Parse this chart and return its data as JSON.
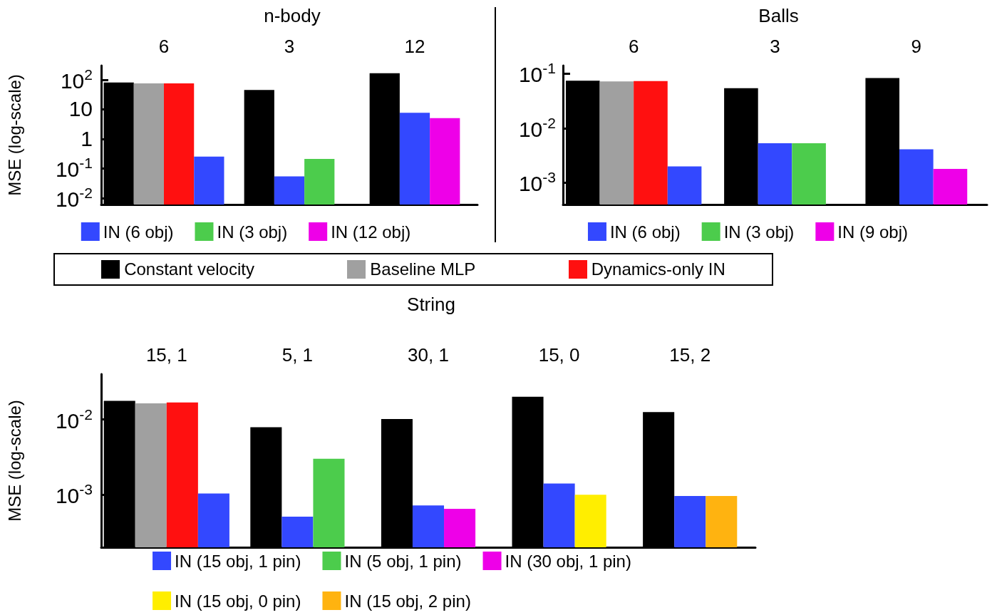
{
  "chart_data": [
    {
      "type": "bar",
      "title": "n-body",
      "ylabel": "MSE (log-scale)",
      "categories": [
        "6",
        "3",
        "12"
      ],
      "log": "y",
      "ylim": [
        0.006,
        300
      ],
      "yticks": [
        {
          "value": 0.01,
          "label": "10$^{-2}$"
        },
        {
          "value": 0.1,
          "label": "10$^{-1}$"
        },
        1,
        10,
        {
          "value": 100,
          "label": "10$^{2}$"
        }
      ],
      "legend": "bottom",
      "series": [
        {
          "name": "Constant velocity",
          "color": "#000000",
          "values": [
            80,
            45,
            165
          ]
        },
        {
          "name": "Baseline MLP",
          "color": "#a0a0a0",
          "values": [
            75,
            null,
            null
          ]
        },
        {
          "name": "Dynamics-only IN",
          "color": "#ff1010",
          "values": [
            75,
            null,
            null
          ]
        },
        {
          "name": "IN (6 obj)",
          "color": "#3348ff",
          "values": [
            0.25,
            0.054,
            7.6
          ]
        },
        {
          "name": "IN (3 obj)",
          "color": "#4ccc4c",
          "values": [
            null,
            0.21,
            null
          ]
        },
        {
          "name": "IN (12 obj)",
          "color": "#ee00e8",
          "values": [
            null,
            null,
            5
          ]
        }
      ]
    },
    {
      "type": "bar",
      "title": "Balls",
      "categories": [
        "6",
        "3",
        "9"
      ],
      "log": "y",
      "ylim": [
        0.0004,
        0.14
      ],
      "yticks": [
        {
          "value": 0.001,
          "label": "10$^{-3}$"
        },
        {
          "value": 0.01,
          "label": "10$^{-2}$"
        },
        {
          "value": 0.1,
          "label": "10$^{-1}$"
        }
      ],
      "legend": "bottom",
      "series": [
        {
          "color": "#000000",
          "values": [
            0.074,
            0.054,
            0.083
          ]
        },
        {
          "color": "#a0a0a0",
          "values": [
            0.072,
            null,
            null
          ]
        },
        {
          "color": "#ff1010",
          "values": [
            0.073,
            null,
            null
          ]
        },
        {
          "name": "IN (6 obj)",
          "color": "#3348ff",
          "values": [
            0.002,
            0.0053,
            0.0041
          ]
        },
        {
          "name": "IN (3 obj)",
          "color": "#4ccc4c",
          "values": [
            null,
            0.0053,
            null
          ]
        },
        {
          "name": "IN (9 obj)",
          "color": "#ee00e8",
          "values": [
            null,
            null,
            0.0018
          ]
        }
      ]
    },
    {
      "type": "bar",
      "title": "String",
      "ylabel": "MSE (log-scale)",
      "categories": [
        "15, 1",
        "5, 1",
        "30, 1",
        "15, 0",
        "15, 2"
      ],
      "log": "y",
      "ylim": [
        0.0002,
        0.04
      ],
      "yticks": [
        {
          "value": 0.001,
          "label": "10$^{-3}$"
        },
        {
          "value": 0.01,
          "label": "10$^{-2}$"
        }
      ],
      "legend": "bottom",
      "series": [
        {
          "color": "#000000",
          "values": [
            0.0177,
            0.0079,
            0.0101,
            0.02,
            0.0125
          ]
        },
        {
          "color": "#a0a0a0",
          "values": [
            0.0164,
            null,
            null,
            null,
            null
          ]
        },
        {
          "color": "#ff1010",
          "values": [
            0.0168,
            null,
            null,
            null,
            null
          ]
        },
        {
          "name": "IN (15 obj, 1 pin)",
          "color": "#3348ff",
          "values": [
            0.00104,
            0.00051,
            0.00072,
            0.00141,
            0.00096
          ]
        },
        {
          "name": "IN (5 obj, 1 pin)",
          "color": "#4ccc4c",
          "values": [
            null,
            0.003,
            null,
            null,
            null
          ]
        },
        {
          "name": "IN (30 obj, 1 pin)",
          "color": "#ee00e8",
          "values": [
            null,
            null,
            0.00065,
            null,
            null
          ]
        },
        {
          "name": "IN (15 obj, 0 pin)",
          "color": "#ffee00",
          "values": [
            null,
            null,
            null,
            0.001,
            null
          ]
        },
        {
          "name": "IN (15 obj, 2 pin)",
          "color": "#ffb310",
          "values": [
            null,
            null,
            null,
            null,
            0.00096
          ]
        }
      ]
    }
  ]
}
